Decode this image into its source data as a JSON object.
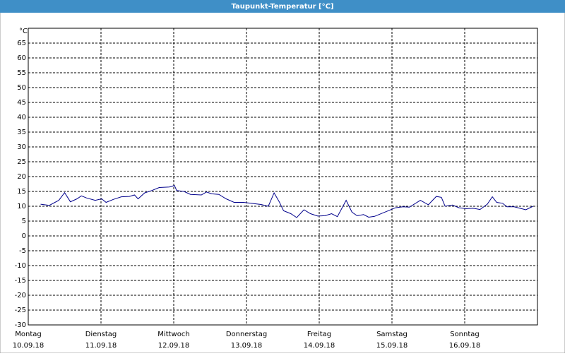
{
  "chart_data": {
    "type": "line",
    "title": "Taupunkt-Temperatur [°C]",
    "y_unit": "°C",
    "xlim": [
      0,
      7
    ],
    "xticks": [
      {
        "value": 0,
        "label": "Montag",
        "date": "10.09.18"
      },
      {
        "value": 1,
        "label": "Dienstag",
        "date": "11.09.18"
      },
      {
        "value": 2,
        "label": "Mittwoch",
        "date": "12.09.18"
      },
      {
        "value": 3,
        "label": "Donnerstag",
        "date": "13.09.18"
      },
      {
        "value": 4,
        "label": "Freitag",
        "date": "14.09.18"
      },
      {
        "value": 5,
        "label": "Samstag",
        "date": "15.09.18"
      },
      {
        "value": 6,
        "label": "Sonntag",
        "date": "16.09.18"
      }
    ],
    "ylim": [
      -30,
      70
    ],
    "yticks": [
      -30,
      -25,
      -20,
      -15,
      -10,
      -5,
      0,
      5,
      10,
      15,
      20,
      25,
      30,
      35,
      40,
      45,
      50,
      55,
      60,
      65
    ],
    "grid": true,
    "color": "#00008b",
    "x": [
      0.17,
      0.29,
      0.42,
      0.5,
      0.58,
      0.67,
      0.73,
      0.8,
      0.92,
      1.01,
      1.07,
      1.17,
      1.28,
      1.39,
      1.46,
      1.51,
      1.6,
      1.7,
      1.8,
      1.94,
      2.01,
      2.04,
      2.14,
      2.23,
      2.38,
      2.45,
      2.52,
      2.62,
      2.72,
      2.83,
      2.96,
      3.06,
      3.2,
      3.3,
      3.38,
      3.45,
      3.51,
      3.61,
      3.69,
      3.79,
      3.88,
      3.98,
      4.08,
      4.17,
      4.25,
      4.37,
      4.45,
      4.52,
      4.61,
      4.68,
      4.76,
      4.87,
      4.95,
      5.05,
      5.15,
      5.24,
      5.39,
      5.5,
      5.61,
      5.68,
      5.73,
      5.83,
      5.92,
      6.02,
      6.12,
      6.21,
      6.31,
      6.38,
      6.44,
      6.52,
      6.58,
      6.68,
      6.78,
      6.84,
      6.94
    ],
    "values": [
      10.7,
      10.3,
      12,
      14.6,
      11.5,
      12.5,
      13.5,
      12.8,
      12,
      12.5,
      11.3,
      12.3,
      13.2,
      13.3,
      13.8,
      12.5,
      14.5,
      15.3,
      16.3,
      16.5,
      17,
      15.3,
      15,
      14,
      13.8,
      14.8,
      14.2,
      14,
      12.5,
      11.3,
      11.3,
      11,
      10.6,
      10,
      14.5,
      11.5,
      8.5,
      7.5,
      6.2,
      8.8,
      7.5,
      6.7,
      6.8,
      7.5,
      6.5,
      12,
      8,
      6.8,
      7.2,
      6.3,
      6.6,
      7.7,
      8.5,
      9.5,
      9.8,
      9.7,
      12,
      10.5,
      13.3,
      13,
      10,
      10.4,
      9.5,
      9.2,
      9.3,
      8.9,
      10.7,
      13.2,
      11.3,
      11,
      9.8,
      9.8,
      9.2,
      8.8,
      10
    ]
  }
}
